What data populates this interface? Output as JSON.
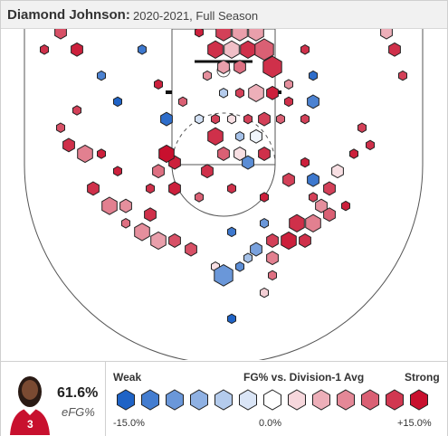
{
  "header": {
    "player_name": "Diamond Johnson:",
    "season": "2020-2021, Full Season"
  },
  "summary": {
    "efg_value": "61.6%",
    "efg_label": "eFG%"
  },
  "legend": {
    "weak_label": "Weak",
    "title": "FG% vs. Division-1 Avg",
    "strong_label": "Strong",
    "min_label": "-15.0%",
    "mid_label": "0.0%",
    "max_label": "+15.0%",
    "scale_levels": [
      -15,
      -12.5,
      -10,
      -7.5,
      -5,
      -2.5,
      0,
      2.5,
      5,
      7.5,
      10,
      12.5,
      15
    ]
  },
  "colors": {
    "strong_red": "#c8102e",
    "weak_blue": "#1f63c6",
    "neutral": "#ffffff",
    "court_line": "#555555"
  },
  "chart_data": {
    "type": "scatter",
    "title": "",
    "xlabel": "",
    "ylabel": "",
    "encoding": "hexagon size = shot volume (1-5), color = FG% relative to Division-1 average (-15 to +15)",
    "shots": [
      {
        "x": -22,
        "y": 31,
        "volume": 1,
        "rel": 12
      },
      {
        "x": -20,
        "y": 28,
        "volume": 2,
        "rel": 11
      },
      {
        "x": -22,
        "y": 26,
        "volume": 1,
        "rel": 13
      },
      {
        "x": -18,
        "y": 26,
        "volume": 2,
        "rel": 14
      },
      {
        "x": 20,
        "y": 28,
        "volume": 2,
        "rel": 5
      },
      {
        "x": 21,
        "y": 26,
        "volume": 2,
        "rel": 13
      },
      {
        "x": 22,
        "y": 23,
        "volume": 1,
        "rel": 12
      },
      {
        "x": -10,
        "y": 26,
        "volume": 1,
        "rel": -13
      },
      {
        "x": -15,
        "y": 23,
        "volume": 1,
        "rel": -12
      },
      {
        "x": -13,
        "y": 20,
        "volume": 1,
        "rel": -15
      },
      {
        "x": -8,
        "y": 22,
        "volume": 1,
        "rel": 14
      },
      {
        "x": -5,
        "y": 20,
        "volume": 1,
        "rel": 10
      },
      {
        "x": -7,
        "y": 18,
        "volume": 2,
        "rel": -14
      },
      {
        "x": -3,
        "y": 18,
        "volume": 1,
        "rel": -3
      },
      {
        "x": -3,
        "y": 28,
        "volume": 1,
        "rel": 14
      },
      {
        "x": 0,
        "y": 28,
        "volume": 3,
        "rel": 12
      },
      {
        "x": 2,
        "y": 28,
        "volume": 3,
        "rel": 6
      },
      {
        "x": 4,
        "y": 28,
        "volume": 3,
        "rel": 6
      },
      {
        "x": -1,
        "y": 26,
        "volume": 3,
        "rel": 13
      },
      {
        "x": 1,
        "y": 26,
        "volume": 3,
        "rel": 4
      },
      {
        "x": 3,
        "y": 26,
        "volume": 3,
        "rel": 13
      },
      {
        "x": 5,
        "y": 26,
        "volume": 4,
        "rel": 10
      },
      {
        "x": 6,
        "y": 24,
        "volume": 4,
        "rel": 13
      },
      {
        "x": 2,
        "y": 24,
        "volume": 2,
        "rel": 9
      },
      {
        "x": 0,
        "y": 24,
        "volume": 2,
        "rel": 6
      },
      {
        "x": -2,
        "y": 23,
        "volume": 1,
        "rel": 7
      },
      {
        "x": 0,
        "y": 21,
        "volume": 1,
        "rel": -5
      },
      {
        "x": 2,
        "y": 21,
        "volume": 1,
        "rel": 12
      },
      {
        "x": 4,
        "y": 21,
        "volume": 3,
        "rel": 5
      },
      {
        "x": 6,
        "y": 21,
        "volume": 2,
        "rel": 14
      },
      {
        "x": 10,
        "y": 26,
        "volume": 1,
        "rel": 13
      },
      {
        "x": 11,
        "y": 23,
        "volume": 1,
        "rel": -14
      },
      {
        "x": 11,
        "y": 20,
        "volume": 2,
        "rel": -12
      },
      {
        "x": 8,
        "y": 20,
        "volume": 1,
        "rel": 13
      },
      {
        "x": 8,
        "y": 22,
        "volume": 1,
        "rel": 7
      },
      {
        "x": -1,
        "y": 18,
        "volume": 1,
        "rel": 12
      },
      {
        "x": 1,
        "y": 18,
        "volume": 1,
        "rel": 2
      },
      {
        "x": 3,
        "y": 18,
        "volume": 1,
        "rel": 12
      },
      {
        "x": 5,
        "y": 18,
        "volume": 2,
        "rel": 12
      },
      {
        "x": 7,
        "y": 18,
        "volume": 1,
        "rel": 10
      },
      {
        "x": 10,
        "y": 18,
        "volume": 1,
        "rel": 12
      },
      {
        "x": -1,
        "y": 16,
        "volume": 3,
        "rel": 13
      },
      {
        "x": 2,
        "y": 16,
        "volume": 1,
        "rel": -6
      },
      {
        "x": 4,
        "y": 16,
        "volume": 2,
        "rel": -1
      },
      {
        "x": 0,
        "y": 14,
        "volume": 2,
        "rel": 10
      },
      {
        "x": 2,
        "y": 14,
        "volume": 2,
        "rel": 2
      },
      {
        "x": 3,
        "y": 13,
        "volume": 2,
        "rel": -11
      },
      {
        "x": 5,
        "y": 14,
        "volume": 2,
        "rel": 13
      },
      {
        "x": -2,
        "y": 12,
        "volume": 2,
        "rel": 13
      },
      {
        "x": -6,
        "y": 13,
        "volume": 2,
        "rel": 14
      },
      {
        "x": -8,
        "y": 12,
        "volume": 2,
        "rel": 9
      },
      {
        "x": -7,
        "y": 14,
        "volume": 3,
        "rel": 15
      },
      {
        "x": -9,
        "y": 10,
        "volume": 1,
        "rel": 13
      },
      {
        "x": -6,
        "y": 10,
        "volume": 2,
        "rel": 14
      },
      {
        "x": -3,
        "y": 9,
        "volume": 1,
        "rel": 10
      },
      {
        "x": 1,
        "y": 10,
        "volume": 1,
        "rel": 13
      },
      {
        "x": 5,
        "y": 9,
        "volume": 1,
        "rel": 14
      },
      {
        "x": 8,
        "y": 11,
        "volume": 2,
        "rel": 12
      },
      {
        "x": 10,
        "y": 13,
        "volume": 1,
        "rel": 14
      },
      {
        "x": 11,
        "y": 11,
        "volume": 2,
        "rel": -13
      },
      {
        "x": 16,
        "y": 14,
        "volume": 1,
        "rel": 14
      },
      {
        "x": 17,
        "y": 17,
        "volume": 1,
        "rel": 12
      },
      {
        "x": 18,
        "y": 15,
        "volume": 1,
        "rel": 13
      },
      {
        "x": -18,
        "y": 19,
        "volume": 1,
        "rel": 12
      },
      {
        "x": -20,
        "y": 17,
        "volume": 1,
        "rel": 11
      },
      {
        "x": -19,
        "y": 15,
        "volume": 2,
        "rel": 13
      },
      {
        "x": -17,
        "y": 14,
        "volume": 3,
        "rel": 8
      },
      {
        "x": -15,
        "y": 14,
        "volume": 1,
        "rel": 14
      },
      {
        "x": -16,
        "y": 10,
        "volume": 2,
        "rel": 13
      },
      {
        "x": -13,
        "y": 12,
        "volume": 1,
        "rel": 14
      },
      {
        "x": -14,
        "y": 8,
        "volume": 3,
        "rel": 8
      },
      {
        "x": -12,
        "y": 8,
        "volume": 2,
        "rel": 7
      },
      {
        "x": -12,
        "y": 6,
        "volume": 1,
        "rel": 9
      },
      {
        "x": -9,
        "y": 7,
        "volume": 2,
        "rel": 13
      },
      {
        "x": -10,
        "y": 5,
        "volume": 3,
        "rel": 7
      },
      {
        "x": -8,
        "y": 4,
        "volume": 3,
        "rel": 6
      },
      {
        "x": -6,
        "y": 4,
        "volume": 2,
        "rel": 11
      },
      {
        "x": -4,
        "y": 3,
        "volume": 2,
        "rel": 11
      },
      {
        "x": -1,
        "y": 1,
        "volume": 1,
        "rel": 2
      },
      {
        "x": 0,
        "y": 0,
        "volume": 4,
        "rel": -10
      },
      {
        "x": 2,
        "y": 1,
        "volume": 1,
        "rel": -11
      },
      {
        "x": 3,
        "y": 2,
        "volume": 1,
        "rel": -6
      },
      {
        "x": 4,
        "y": 3,
        "volume": 2,
        "rel": -9
      },
      {
        "x": 6,
        "y": 2,
        "volume": 2,
        "rel": 8
      },
      {
        "x": 6,
        "y": 4,
        "volume": 2,
        "rel": 12
      },
      {
        "x": 8,
        "y": 4,
        "volume": 3,
        "rel": 14
      },
      {
        "x": 10,
        "y": 4,
        "volume": 2,
        "rel": 13
      },
      {
        "x": 9,
        "y": 6,
        "volume": 3,
        "rel": 13
      },
      {
        "x": 11,
        "y": 6,
        "volume": 3,
        "rel": 8
      },
      {
        "x": 12,
        "y": 8,
        "volume": 2,
        "rel": 7
      },
      {
        "x": 13,
        "y": 10,
        "volume": 2,
        "rel": 12
      },
      {
        "x": 14,
        "y": 12,
        "volume": 2,
        "rel": 2
      },
      {
        "x": 13,
        "y": 7,
        "volume": 2,
        "rel": 10
      },
      {
        "x": 15,
        "y": 8,
        "volume": 1,
        "rel": 14
      },
      {
        "x": 11,
        "y": 9,
        "volume": 1,
        "rel": 12
      },
      {
        "x": 1,
        "y": 5,
        "volume": 1,
        "rel": -13
      },
      {
        "x": 5,
        "y": 6,
        "volume": 1,
        "rel": -10
      },
      {
        "x": 6,
        "y": 0,
        "volume": 1,
        "rel": 9
      },
      {
        "x": 5,
        "y": -2,
        "volume": 1,
        "rel": 3
      },
      {
        "x": 1,
        "y": -5,
        "volume": 1,
        "rel": -15
      }
    ]
  }
}
